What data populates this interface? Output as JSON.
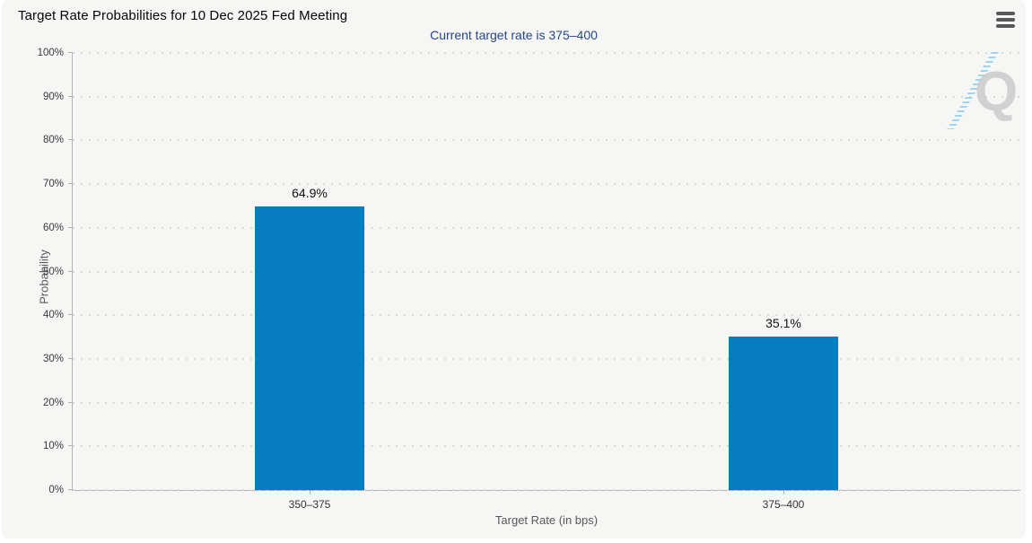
{
  "header": {
    "title": "Target Rate Probabilities for 10 Dec 2025 Fed Meeting",
    "menu_icon": "hamburger-icon"
  },
  "chart_data": {
    "type": "bar",
    "title": "Target Rate Probabilities for 10 Dec 2025 Fed Meeting",
    "subtitle": "Current target rate is 375–400",
    "categories": [
      "350–375",
      "375–400"
    ],
    "values": [
      64.9,
      35.1
    ],
    "bar_labels": [
      "64.9%",
      "35.1%"
    ],
    "xlabel": "Target Rate (in bps)",
    "ylabel": "Probability",
    "ylim": [
      0,
      100
    ],
    "ytick_step": 10,
    "ytick_suffix": "%",
    "grid": "horizontal-dotted",
    "legend_position": "none",
    "watermark_letter": "Q"
  },
  "colors": {
    "card_background": "#f6f6f5",
    "bar": "#087cc2",
    "subtitle": "#26478d",
    "axis_line": "#b3b3b3",
    "grid_dot": "#d9d9d9",
    "watermark_gray": "#cbcbcb",
    "watermark_blue": "#80ccf0"
  }
}
